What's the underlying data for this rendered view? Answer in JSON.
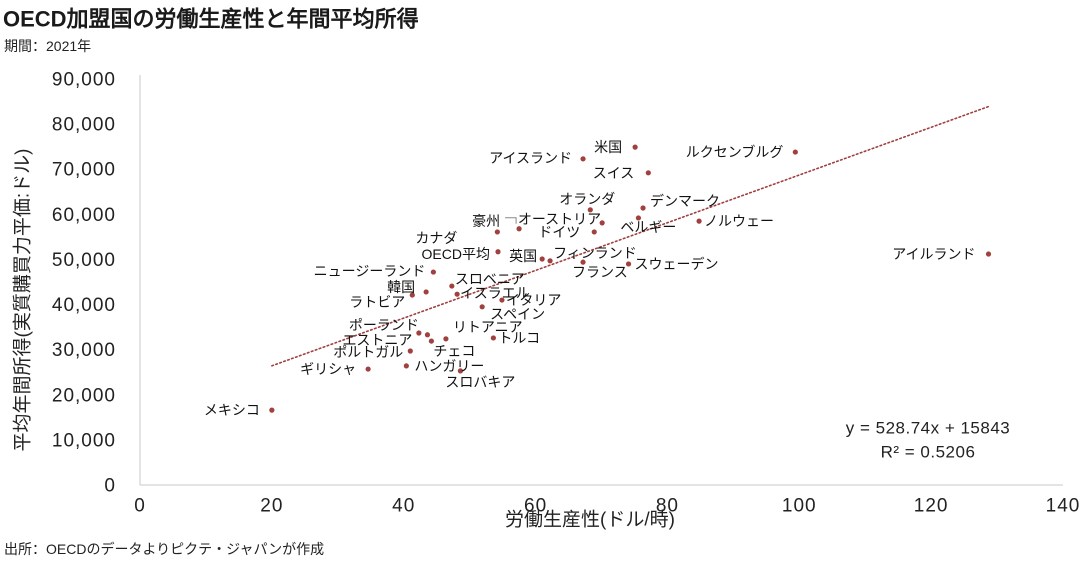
{
  "source": "出所：OECDのデータよりピクテ・ジャパンが作成",
  "colors": {
    "point": "#a0403f",
    "trendline": "#a0403f",
    "axis": "#c8c8c8",
    "text": "#222222"
  },
  "chart_data": {
    "type": "scatter",
    "title": "OECD加盟国の労働生産性と年間平均所得",
    "subtitle": "期間：2021年",
    "xlabel": "労働生産性(ドル/時)",
    "ylabel": "平均年間所得(実質購買力平価:ドル)",
    "xlim": [
      0,
      140
    ],
    "ylim": [
      0,
      90000
    ],
    "x_ticks": [
      "0",
      "20",
      "40",
      "60",
      "80",
      "100",
      "120",
      "140"
    ],
    "y_ticks": [
      "0",
      "10,000",
      "20,000",
      "30,000",
      "40,000",
      "50,000",
      "60,000",
      "70,000",
      "80,000",
      "90,000"
    ],
    "grid": false,
    "points": [
      {
        "name": "メキシコ",
        "x": 20.0,
        "y": 16600
      },
      {
        "name": "ギリシャ",
        "x": 34.6,
        "y": 25700
      },
      {
        "name": "ハンガリー",
        "x": 40.4,
        "y": 26400
      },
      {
        "name": "スロバキア",
        "x": 48.6,
        "y": 25300
      },
      {
        "name": "ポルトガル",
        "x": 41.0,
        "y": 29700
      },
      {
        "name": "チェコ",
        "x": 44.2,
        "y": 31900
      },
      {
        "name": "エストニア",
        "x": 43.6,
        "y": 33300
      },
      {
        "name": "ポーランド",
        "x": 42.3,
        "y": 33700
      },
      {
        "name": "リトアニア",
        "x": 46.4,
        "y": 32400
      },
      {
        "name": "トルコ",
        "x": 53.6,
        "y": 32600
      },
      {
        "name": "ラトビア",
        "x": 41.3,
        "y": 42100
      },
      {
        "name": "韓国",
        "x": 43.4,
        "y": 42800
      },
      {
        "name": "ニュージーランド",
        "x": 44.5,
        "y": 47200
      },
      {
        "name": "スロベニア",
        "x": 47.3,
        "y": 44100
      },
      {
        "name": "イスラエル",
        "x": 48.1,
        "y": 42300
      },
      {
        "name": "イタリア",
        "x": 54.9,
        "y": 41000
      },
      {
        "name": "スペイン",
        "x": 51.9,
        "y": 39500
      },
      {
        "name": "カナダ",
        "x": 54.2,
        "y": 56100
      },
      {
        "name": "OECD平均",
        "x": 54.3,
        "y": 51700
      },
      {
        "name": "英国",
        "x": 61.0,
        "y": 50100
      },
      {
        "name": "フィンランド",
        "x": 62.2,
        "y": 49700
      },
      {
        "name": "フランス",
        "x": 67.2,
        "y": 49400
      },
      {
        "name": "スウェーデン",
        "x": 74.1,
        "y": 49000
      },
      {
        "name": "豪州",
        "x": 57.5,
        "y": 56800
      },
      {
        "name": "ドイツ",
        "x": 68.9,
        "y": 56100
      },
      {
        "name": "オーストリア",
        "x": 70.1,
        "y": 58100
      },
      {
        "name": "ベルギー",
        "x": 75.6,
        "y": 59200
      },
      {
        "name": "オランダ",
        "x": 68.3,
        "y": 61000
      },
      {
        "name": "デンマーク",
        "x": 76.3,
        "y": 61400
      },
      {
        "name": "ノルウェー",
        "x": 84.8,
        "y": 58500
      },
      {
        "name": "スイス",
        "x": 77.1,
        "y": 69200
      },
      {
        "name": "アイスランド",
        "x": 67.2,
        "y": 72300
      },
      {
        "name": "米国",
        "x": 75.1,
        "y": 74900
      },
      {
        "name": "ルクセンブルグ",
        "x": 99.4,
        "y": 73800
      },
      {
        "name": "アイルランド",
        "x": 128.7,
        "y": 51200
      }
    ],
    "trendline": {
      "type": "linear",
      "slope": 528.74,
      "intercept": 15843,
      "equation": "y = 528.74x + 15843",
      "r_squared": "R² = 0.5206"
    }
  }
}
